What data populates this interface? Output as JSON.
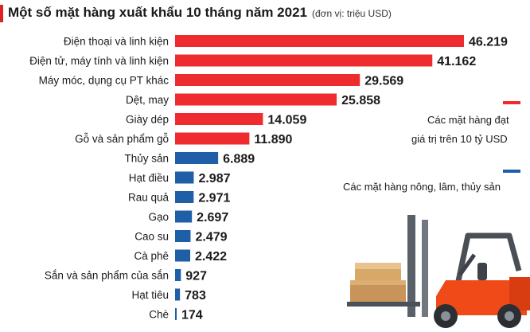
{
  "header": {
    "title": "Một số mặt hàng xuất khẩu 10 tháng năm 2021",
    "unit": "(đơn vị: triệu USD)"
  },
  "legend": {
    "red_line1": "Các mặt hàng đạt",
    "red_line2": "giá trị trên 10 tỷ USD",
    "blue": "Các mặt hàng nông, lâm, thủy sản"
  },
  "colors": {
    "red": "#ee2b2f",
    "blue": "#1f5fa8"
  },
  "chart_data": {
    "type": "bar",
    "orientation": "horizontal",
    "title": "Một số mặt hàng xuất khẩu 10 tháng năm 2021",
    "unit": "(đơn vị: triệu USD)",
    "categories": [
      "Điện thoại và linh kiện",
      "Điện tử, máy tính và linh kiện",
      "Máy móc, dụng cụ PT khác",
      "Dệt, may",
      "Giày dép",
      "Gỗ và sản phẩm gỗ",
      "Thủy sản",
      "Hạt điều",
      "Rau quả",
      "Gạo",
      "Cao su",
      "Cà phê",
      "Sắn và sản phẩm của sắn",
      "Hạt tiêu",
      "Chè"
    ],
    "values": [
      46219,
      41162,
      29569,
      25858,
      14059,
      11890,
      6889,
      2987,
      2971,
      2697,
      2479,
      2422,
      927,
      783,
      174
    ],
    "value_labels": [
      "46.219",
      "41.162",
      "29.569",
      "25.858",
      "14.059",
      "11.890",
      "6.889",
      "2.987",
      "2.971",
      "2.697",
      "2.479",
      "2.422",
      "927",
      "783",
      "174"
    ],
    "groups": [
      "red",
      "red",
      "red",
      "red",
      "red",
      "red",
      "blue",
      "blue",
      "blue",
      "blue",
      "blue",
      "blue",
      "blue",
      "blue",
      "blue"
    ]
  },
  "illustration": "forklift-with-boxes"
}
